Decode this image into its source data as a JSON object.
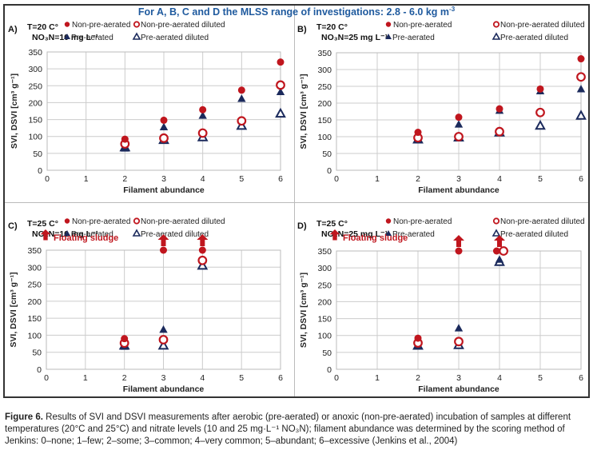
{
  "header": {
    "title": "For A, B, C and D the MLSS range of investigations: 2.8 - 6.0 kg m",
    "title_sup": "-3"
  },
  "legend": {
    "non_pre_aerated": "Non-pre-aerated",
    "non_pre_aerated_diluted": "Non-pre-aerated diluted",
    "pre_aerated": "Pre-aerated",
    "pre_aerated_diluted": "Pre-aerated diluted",
    "floating_sludge": "Floating sludge"
  },
  "colors": {
    "red": "#c0161e",
    "navy": "#1b2a5c",
    "title_blue": "#1f5a9e",
    "grid": "#cccccc"
  },
  "caption": {
    "label": "Figure 6.",
    "text": " Results of SVI and DSVI measurements after aerobic (pre-aerated) or anoxic (non-pre-aerated) incubation of samples at different temperatures (20°C and 25°C) and nitrate levels (10 and 25 mg·L⁻¹ NO₃N); filament abundance was determined by the scoring method of Jenkins: 0–none; 1–few; 2–some; 3–common; 4–very common; 5–abundant; 6–excessive (Jenkins et al., 2004)"
  },
  "chart_data": [
    {
      "type": "scatter",
      "panel": "A)",
      "condition_line1": "T=20 C°",
      "condition_line2": "NO₃N=10 mg L⁻¹",
      "xlabel": "Filament abundance",
      "ylabel": "SVI, DSVI [cm³ g⁻¹]",
      "xlim": [
        0,
        6
      ],
      "ylim": [
        0,
        350
      ],
      "xticks": [
        0,
        1,
        2,
        3,
        4,
        5,
        6
      ],
      "yticks": [
        0,
        50,
        100,
        150,
        200,
        250,
        300,
        350
      ],
      "grid": true,
      "floating_sludge_legend": false,
      "series": [
        {
          "name": "Non-pre-aerated",
          "marker": "filled-circle",
          "x": [
            2,
            3,
            4,
            5,
            6
          ],
          "y": [
            92,
            148,
            179,
            237,
            320
          ]
        },
        {
          "name": "Non-pre-aerated diluted",
          "marker": "open-circle",
          "x": [
            2,
            3,
            4,
            5,
            6
          ],
          "y": [
            78,
            95,
            110,
            146,
            252
          ]
        },
        {
          "name": "Pre-aerated",
          "marker": "filled-triangle",
          "x": [
            2,
            3,
            4,
            5,
            6
          ],
          "y": [
            65,
            128,
            162,
            212,
            232
          ]
        },
        {
          "name": "Pre-aerated diluted",
          "marker": "open-triangle",
          "x": [
            2,
            3,
            4,
            5,
            6
          ],
          "y": [
            68,
            90,
            98,
            132,
            168
          ]
        }
      ],
      "floating": []
    },
    {
      "type": "scatter",
      "panel": "B)",
      "condition_line1": "T=20 C°",
      "condition_line2": "NO₃N=25 mg L⁻¹",
      "xlabel": "Filament abundance",
      "ylabel": "SVI, DSVI [cm³ g⁻¹]",
      "xlim": [
        0,
        6
      ],
      "ylim": [
        0,
        350
      ],
      "xticks": [
        0,
        1,
        2,
        3,
        4,
        5,
        6
      ],
      "yticks": [
        0,
        50,
        100,
        150,
        200,
        250,
        300,
        350
      ],
      "grid": true,
      "floating_sludge_legend": false,
      "series": [
        {
          "name": "Non-pre-aerated",
          "marker": "filled-circle",
          "x": [
            2,
            3,
            4,
            5,
            6
          ],
          "y": [
            113,
            158,
            183,
            242,
            332
          ]
        },
        {
          "name": "Non-pre-aerated diluted",
          "marker": "open-circle",
          "x": [
            2,
            3,
            4,
            5,
            6
          ],
          "y": [
            97,
            100,
            115,
            172,
            278
          ]
        },
        {
          "name": "Pre-aerated",
          "marker": "filled-triangle",
          "x": [
            2,
            3,
            4,
            5,
            6
          ],
          "y": [
            92,
            137,
            178,
            236,
            242
          ]
        },
        {
          "name": "Pre-aerated diluted",
          "marker": "open-triangle",
          "x": [
            2,
            3,
            4,
            5,
            6
          ],
          "y": [
            92,
            98,
            113,
            133,
            163
          ]
        }
      ],
      "floating": []
    },
    {
      "type": "scatter",
      "panel": "C)",
      "condition_line1": "T=25 C°",
      "condition_line2": "NO₃N=10 mg L⁻¹",
      "xlabel": "Filament abundance",
      "ylabel": "SVI, DSVI [cm³ g⁻¹]",
      "xlim": [
        0,
        6
      ],
      "ylim": [
        0,
        350
      ],
      "xticks": [
        0,
        1,
        2,
        3,
        4,
        5,
        6
      ],
      "yticks": [
        0,
        50,
        100,
        150,
        200,
        250,
        300,
        350
      ],
      "grid": true,
      "floating_sludge_legend": true,
      "series": [
        {
          "name": "Non-pre-aerated",
          "marker": "filled-circle",
          "x": [
            2,
            3,
            4
          ],
          "y": [
            90,
            350,
            350
          ]
        },
        {
          "name": "Non-pre-aerated diluted",
          "marker": "open-circle",
          "x": [
            2,
            3,
            4
          ],
          "y": [
            77,
            87,
            320
          ]
        },
        {
          "name": "Pre-aerated",
          "marker": "filled-triangle",
          "x": [
            2,
            3,
            4
          ],
          "y": [
            67,
            117,
            322
          ]
        },
        {
          "name": "Pre-aerated diluted",
          "marker": "open-triangle",
          "x": [
            2,
            3,
            4
          ],
          "y": [
            70,
            70,
            305
          ]
        }
      ],
      "floating": [
        3,
        4
      ]
    },
    {
      "type": "scatter",
      "panel": "D)",
      "condition_line1": "T=25 C°",
      "condition_line2": "NO₃N=25 mg L⁻¹",
      "xlabel": "Filament abundance",
      "ylabel": "SVI, DSVI [cm³ g⁻¹]",
      "xlim": [
        0,
        6
      ],
      "ylim": [
        0,
        350
      ],
      "xticks": [
        0,
        1,
        2,
        3,
        4,
        5,
        6
      ],
      "yticks": [
        0,
        50,
        100,
        150,
        200,
        250,
        300,
        350
      ],
      "grid": true,
      "floating_sludge_legend": true,
      "series": [
        {
          "name": "Non-pre-aerated",
          "marker": "filled-circle",
          "x": [
            2,
            3,
            3.93
          ],
          "y": [
            92,
            350,
            350
          ]
        },
        {
          "name": "Non-pre-aerated diluted",
          "marker": "open-circle",
          "x": [
            2,
            3,
            4.1
          ],
          "y": [
            78,
            82,
            350
          ]
        },
        {
          "name": "Pre-aerated",
          "marker": "filled-triangle",
          "x": [
            2,
            3,
            4
          ],
          "y": [
            68,
            122,
            325
          ]
        },
        {
          "name": "Pre-aerated diluted",
          "marker": "open-triangle",
          "x": [
            2,
            3,
            4
          ],
          "y": [
            70,
            72,
            318
          ]
        }
      ],
      "floating": [
        3,
        4
      ]
    }
  ]
}
